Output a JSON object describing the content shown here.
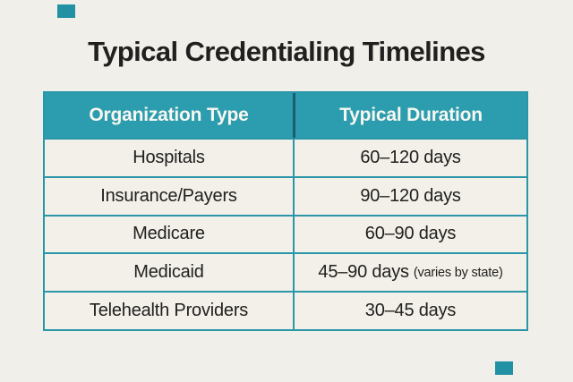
{
  "title": "Typical Credentialing Timelines",
  "colors": {
    "background": "#f1efe9",
    "header_teal": "#2c9dae",
    "border_teal": "#2a96a8",
    "header_divider_dark": "#1a5f6d",
    "corner_accent_teal": "#2391a4",
    "text_dark": "#21201e",
    "header_text": "#f8f7f1"
  },
  "table": {
    "headers": [
      "Organization Type",
      "Typical Duration"
    ],
    "rows": [
      {
        "org": "Hospitals",
        "duration": "60–120 days"
      },
      {
        "org": "Insurance/Payers",
        "duration": "90–120 days"
      },
      {
        "org": "Medicare",
        "duration": "60–90 days"
      },
      {
        "org": "Medicaid",
        "duration": "45–90 days",
        "duration_note": "(varies by state)"
      },
      {
        "org": "Telehealth Providers",
        "duration": "30–45 days"
      }
    ]
  },
  "chart_data": {
    "type": "table",
    "title": "Typical Credentialing Timelines",
    "columns": [
      "Organization Type",
      "Typical Duration"
    ],
    "rows": [
      [
        "Hospitals",
        "60–120 days"
      ],
      [
        "Insurance/Payers",
        "90–120 days"
      ],
      [
        "Medicare",
        "60–90 days"
      ],
      [
        "Medicaid",
        "45–90 days (varies by state)"
      ],
      [
        "Telehealth Providers",
        "30–45 days"
      ]
    ]
  }
}
